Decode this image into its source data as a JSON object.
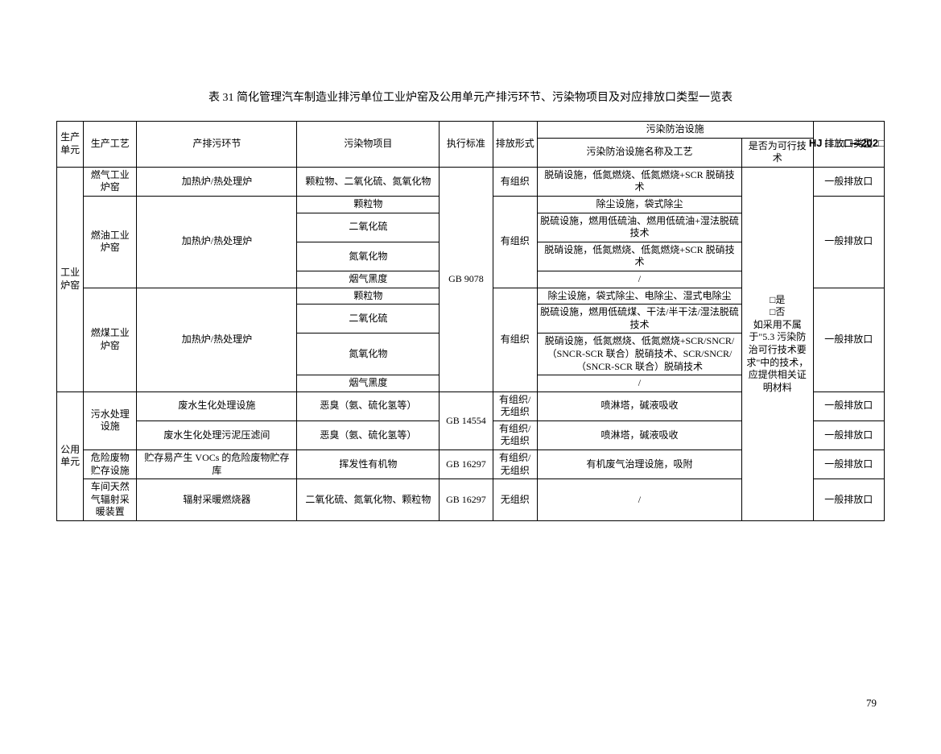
{
  "header_code": "HJ □□□□—202□",
  "title": "表 31  简化管理汽车制造业排污单位工业炉窑及公用单元产排污环节、污染物项目及对应排放口类型一览表",
  "page_number": "79",
  "headers": {
    "unit": "生产单元",
    "process": "生产工艺",
    "link": "产排污环节",
    "pollutant": "污染物项目",
    "standard": "执行标准",
    "form": "排放形式",
    "prevention": "污染防治设施",
    "facility": "污染防治设施名称及工艺",
    "tech": "是否为可行技术",
    "type": "排放口类型"
  },
  "tech_note": "□是\n□否\n如采用不属于\"5.3 污染防治可行技术要求\"中的技术，应提供相关证明材料",
  "standards": {
    "gb9078": "GB 9078",
    "gb14554": "GB 14554",
    "gb16297_1": "GB 16297",
    "gb16297_2": "GB 16297"
  },
  "units": {
    "furnace": "工业炉窑",
    "public": "公用单元"
  },
  "rows": {
    "r1": {
      "process": "燃气工业炉窑",
      "link": "加热炉/热处理炉",
      "pollutant": "颗粒物、二氧化硫、氮氧化物",
      "form": "有组织",
      "facility": "脱硝设施，低氮燃烧、低氮燃烧+SCR 脱硝技术",
      "type": "一般排放口"
    },
    "r2": {
      "process": "燃油工业炉窑",
      "link": "加热炉/热处理炉",
      "form": "有组织",
      "type": "一般排放口"
    },
    "r2a": {
      "pollutant": "颗粒物",
      "facility": "除尘设施，袋式除尘"
    },
    "r2b": {
      "pollutant": "二氧化硫",
      "facility": "脱硫设施，燃用低硫油、燃用低硫油+湿法脱硫技术"
    },
    "r2c": {
      "pollutant": "氮氧化物",
      "facility": "脱硝设施，低氮燃烧、低氮燃烧+SCR 脱硝技术"
    },
    "r2d": {
      "pollutant": "烟气黑度",
      "facility": "/"
    },
    "r3": {
      "process": "燃煤工业炉窑",
      "link": "加热炉/热处理炉",
      "form": "有组织",
      "type": "一般排放口"
    },
    "r3a": {
      "pollutant": "颗粒物",
      "facility": "除尘设施，袋式除尘、电除尘、湿式电除尘"
    },
    "r3b": {
      "pollutant": "二氧化硫",
      "facility": "脱硫设施，燃用低硫煤、干法/半干法/湿法脱硫技术"
    },
    "r3c": {
      "pollutant": "氮氧化物",
      "facility": "脱硝设施，低氮燃烧、低氮燃烧+SCR/SNCR/（SNCR-SCR 联合）脱硝技术、SCR/SNCR/（SNCR-SCR 联合）脱硝技术"
    },
    "r3d": {
      "pollutant": "烟气黑度",
      "facility": "/"
    },
    "r4": {
      "process": "污水处理设施",
      "type_a": "一般排放口",
      "type_b": "一般排放口"
    },
    "r4a": {
      "link": "废水生化处理设施",
      "pollutant": "恶臭（氨、硫化氢等）",
      "form": "有组织/无组织",
      "facility": "喷淋塔，碱液吸收"
    },
    "r4b": {
      "link": "废水生化处理污泥压滤间",
      "pollutant": "恶臭（氨、硫化氢等）",
      "form": "有组织/无组织",
      "facility": "喷淋塔，碱液吸收"
    },
    "r5": {
      "process": "危险废物贮存设施",
      "link": "贮存易产生 VOCs 的危险废物贮存库",
      "pollutant": "挥发性有机物",
      "form": "有组织/无组织",
      "facility": "有机废气治理设施，吸附",
      "type": "一般排放口"
    },
    "r6": {
      "process": "车间天然气辐射采暖装置",
      "link": "辐射采暖燃烧器",
      "pollutant": "二氧化硫、氮氧化物、颗粒物",
      "form": "无组织",
      "facility": "/",
      "type": "一般排放口"
    }
  }
}
